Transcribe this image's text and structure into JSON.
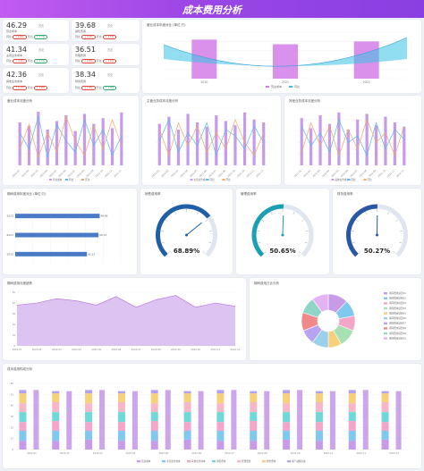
{
  "header": {
    "title": "成本费用分析"
  },
  "kpis": [
    {
      "value": "46.29",
      "unit": "万元",
      "label": "营业成本",
      "sub1": "同比",
      "b1": "↑ 6.6%",
      "b1t": "up",
      "sub2": "环比",
      "b2": "↑ 7.7%",
      "b2t": "down"
    },
    {
      "value": "39.68",
      "unit": "万元",
      "label": "销售费用",
      "sub1": "同比",
      "b1": "↓ 3.2%",
      "b1t": "up",
      "sub2": "环比",
      "b2": "↑ 4.5%",
      "b2t": "up"
    },
    {
      "value": "41.34",
      "unit": "万元",
      "label": "主营业务成本",
      "sub1": "同比",
      "b1": "↓ 4.1%",
      "b1t": "up",
      "sub2": "环比",
      "b2": "↑ 5.2%",
      "b2t": "down"
    },
    {
      "value": "36.51",
      "unit": "万元",
      "label": "管理费用",
      "sub1": "同比",
      "b1": "↓ 2.8%",
      "b1t": "up",
      "sub2": "环比",
      "b2": "↓ 3.6%",
      "b2t": "up"
    },
    {
      "value": "42.36",
      "unit": "万元",
      "label": "其他业务成本",
      "sub1": "同比",
      "b1": "↑ 5.1%",
      "b1t": "up",
      "sub2": "环比",
      "b2": "↓ 7.8%",
      "b2t": "up"
    },
    {
      "value": "38.34",
      "unit": "万元",
      "label": "财务费用",
      "sub1": "同比",
      "b1": "↓ 2.3%",
      "b1t": "up",
      "sub2": "环比",
      "b2": "↑ 1.9%",
      "b2t": "down"
    }
  ],
  "panels": {
    "ratio_year": "营业成本年度对比 (单位:万)",
    "cost_month": "营业成本月度分析",
    "main_cost_month": "主营业务成本月度分析",
    "other_cost_month": "其他业务成本月度分析",
    "expense_year": "期间费用年度对比 (单位:万)",
    "sales_ratio": "销售费用率",
    "manage_ratio": "管理费用率",
    "finance_ratio": "财务费用率",
    "expense_month": "期间费用月度趋势",
    "expense_pie": "期间费用占比分析",
    "composition": "成本费用构成分析"
  },
  "chart_data": [
    {
      "type": "bar",
      "title": "营业成本年度对比 (单位:万)",
      "categories": [
        "2020",
        "2021",
        "2022"
      ],
      "series": [
        {
          "name": "营业成本",
          "values": [
            420,
            370,
            400
          ]
        },
        {
          "name": "同比",
          "values": [
            -12,
            -20,
            5
          ]
        }
      ],
      "ylim": [
        0,
        500
      ]
    },
    {
      "type": "bar",
      "title": "营业成本月度分析",
      "categories": [
        "2022-01",
        "2022-02",
        "2022-03",
        "2022-04",
        "2022-05",
        "2022-06",
        "2022-07",
        "2022-08",
        "2022-09",
        "2022-10",
        "2022-11",
        "2022-12"
      ],
      "series": [
        {
          "name": "营业成本",
          "values": [
            60,
            55,
            75,
            50,
            62,
            70,
            48,
            72,
            58,
            66,
            52,
            74
          ]
        },
        {
          "name": "同比",
          "values": [
            20,
            10,
            30,
            5,
            25,
            15,
            8,
            28,
            12,
            22,
            6,
            18
          ]
        },
        {
          "name": "环比",
          "values": [
            10,
            25,
            5,
            20,
            8,
            30,
            15,
            6,
            24,
            10,
            28,
            12
          ]
        }
      ]
    },
    {
      "type": "bar",
      "title": "主营业务成本月度分析",
      "categories": [
        "2022-01",
        "2022-02",
        "2022-03",
        "2022-04",
        "2022-05",
        "2022-06",
        "2022-07",
        "2022-08",
        "2022-09",
        "2022-10",
        "2022-11",
        "2022-12"
      ],
      "series": [
        {
          "name": "主营业务成本",
          "values": [
            58,
            68,
            50,
            72,
            60,
            54,
            70,
            62,
            56,
            74,
            64,
            60
          ]
        },
        {
          "name": "同比",
          "values": [
            15,
            28,
            8,
            20,
            12,
            26,
            6,
            22,
            18,
            10,
            24,
            14
          ]
        },
        {
          "name": "环比",
          "values": [
            22,
            6,
            26,
            12,
            24,
            8,
            20,
            10,
            28,
            14,
            6,
            20
          ]
        }
      ]
    },
    {
      "type": "bar",
      "title": "其他业务成本月度分析",
      "categories": [
        "2022-01",
        "2022-02",
        "2022-03",
        "2022-04",
        "2022-05",
        "2022-06",
        "2022-07",
        "2022-08",
        "2022-09",
        "2022-10",
        "2022-11",
        "2022-12"
      ],
      "series": [
        {
          "name": "其他业务成本",
          "values": [
            66,
            52,
            70,
            58,
            74,
            50,
            64,
            72,
            56,
            68,
            60,
            54
          ]
        },
        {
          "name": "同比",
          "values": [
            24,
            12,
            20,
            8,
            28,
            14,
            18,
            6,
            26,
            10,
            22,
            16
          ]
        },
        {
          "name": "环比",
          "values": [
            8,
            26,
            12,
            24,
            6,
            22,
            10,
            28,
            14,
            20,
            6,
            24
          ]
        }
      ]
    },
    {
      "type": "bar",
      "title": "期间费用年度对比 (单位:万)",
      "categories": [
        "2022",
        "2021",
        "2020"
      ],
      "values": [
        96.06,
        94.72,
        81.52
      ],
      "xlim": [
        0,
        120
      ]
    },
    {
      "type": "line",
      "title": "期间费用月度趋势",
      "categories": [
        "2022-01",
        "2022-02",
        "2022-03",
        "2022-04",
        "2022-05",
        "2022-06",
        "2022-07",
        "2022-08",
        "2022-09",
        "2022-10",
        "2022-11",
        "2022-12"
      ],
      "values": [
        38,
        40,
        44,
        42,
        38,
        46,
        36,
        43,
        47,
        36,
        40,
        37
      ],
      "ylim": [
        0,
        50
      ]
    },
    {
      "type": "pie",
      "title": "期间费用占比分析",
      "labels": [
        "期间费用项目01",
        "期间费用项目02",
        "期间费用项目03",
        "期间费用项目04",
        "期间费用项目05",
        "期间费用项目06",
        "期间费用项目07",
        "期间费用项目08",
        "期间费用项目09",
        "期间费用项目10"
      ],
      "values": [
        12,
        10,
        9,
        11,
        8,
        10,
        9,
        11,
        10,
        10
      ],
      "colors": [
        "#c79be8",
        "#7fc8f0",
        "#f3a6c8",
        "#a8e0b4",
        "#f7d07a",
        "#9ad0ec",
        "#b7a3f0",
        "#f08a8a",
        "#8fd6c8",
        "#e6b3f2"
      ]
    },
    {
      "type": "bar",
      "title": "成本费用构成分析",
      "categories": [
        "2022-01",
        "2022-02",
        "2022-03",
        "2022-04",
        "2022-05",
        "2022-06",
        "2022-07",
        "2022-08",
        "2022-09",
        "2022-10",
        "2022-11",
        "2022-12"
      ],
      "series": [
        {
          "name": "营业成本",
          "values": [
            8,
            8,
            9,
            8,
            8,
            9,
            8,
            8,
            9,
            8,
            8,
            9
          ]
        },
        {
          "name": "主营业务成本",
          "values": [
            9,
            9,
            8,
            9,
            9,
            8,
            9,
            9,
            8,
            9,
            9,
            8
          ]
        },
        {
          "name": "其他业务成本",
          "values": [
            8,
            9,
            8,
            8,
            9,
            8,
            8,
            9,
            8,
            8,
            9,
            8
          ]
        },
        {
          "name": "销售费用",
          "values": [
            9,
            8,
            9,
            9,
            8,
            9,
            9,
            8,
            9,
            9,
            8,
            9
          ]
        },
        {
          "name": "管理费用",
          "values": [
            8,
            9,
            8,
            9,
            8,
            9,
            8,
            9,
            8,
            9,
            8,
            9
          ]
        },
        {
          "name": "财务费用",
          "values": [
            9,
            8,
            9,
            8,
            9,
            8,
            9,
            8,
            9,
            8,
            9,
            8
          ]
        },
        {
          "name": "资产减值损失",
          "values": [
            3,
            2,
            3,
            2,
            3,
            2,
            3,
            2,
            3,
            2,
            3,
            2
          ]
        }
      ],
      "colors": [
        "#c79be8",
        "#7fc8f0",
        "#f3a6c8",
        "#6fd8d8",
        "#f7b7c7",
        "#f7d07a",
        "#b3a0f0"
      ],
      "ylim": [
        0,
        60
      ]
    }
  ],
  "gauges": [
    {
      "value": "68.89%",
      "level": 0.6889,
      "color": "#1f5fa8"
    },
    {
      "value": "50.65%",
      "level": 0.5065,
      "color": "#1b9fb4"
    },
    {
      "value": "50.27%",
      "level": 0.5027,
      "color": "#2a56a8"
    }
  ]
}
